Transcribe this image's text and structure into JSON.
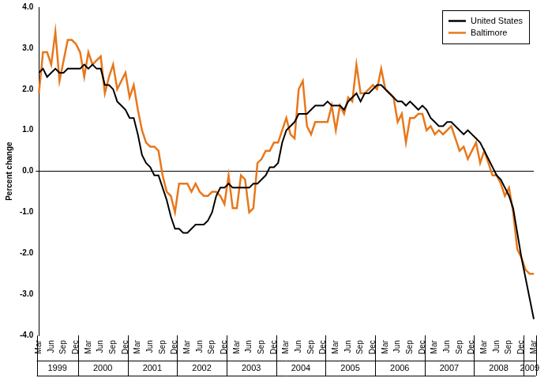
{
  "chart_data": {
    "type": "line",
    "y_label": "Percent change",
    "categories": [
      "Mar",
      null,
      null,
      "Jun",
      null,
      null,
      "Sep",
      null,
      null,
      "Dec",
      null,
      null,
      "Mar",
      null,
      null,
      "Jun",
      null,
      null,
      "Sep",
      null,
      null,
      "Dec",
      null,
      null,
      "Mar",
      null,
      null,
      "Jun",
      null,
      null,
      "Sep",
      null,
      null,
      "Dec",
      null,
      null,
      "Mar",
      null,
      null,
      "Jun",
      null,
      null,
      "Sep",
      null,
      null,
      "Dec",
      null,
      null,
      "Mar",
      null,
      null,
      "Jun",
      null,
      null,
      "Sep",
      null,
      null,
      "Dec",
      null,
      null,
      "Mar",
      null,
      null,
      "Jun",
      null,
      null,
      "Sep",
      null,
      null,
      "Dec",
      null,
      null,
      "Mar",
      null,
      null,
      "Jun",
      null,
      null,
      "Sep",
      null,
      null,
      "Dec",
      null,
      null,
      "Mar",
      null,
      null,
      "Jun",
      null,
      null,
      "Sep",
      null,
      null,
      "Dec",
      null,
      null,
      "Mar",
      null,
      null,
      "Jun",
      null,
      null,
      "Sep",
      null,
      null,
      "Dec",
      null,
      null,
      "Mar",
      null,
      null,
      "Jun",
      null,
      null,
      "Sep",
      null,
      null,
      "Dec",
      null,
      null,
      "Mar"
    ],
    "x_groups": [
      {
        "label": "1999",
        "count": 10
      },
      {
        "label": "2000",
        "count": 12
      },
      {
        "label": "2001",
        "count": 12
      },
      {
        "label": "2002",
        "count": 12
      },
      {
        "label": "2003",
        "count": 12
      },
      {
        "label": "2004",
        "count": 12
      },
      {
        "label": "2005",
        "count": 12
      },
      {
        "label": "2006",
        "count": 12
      },
      {
        "label": "2007",
        "count": 12
      },
      {
        "label": "2008",
        "count": 12
      },
      {
        "label": "2009",
        "count": 3
      }
    ],
    "series": [
      {
        "name": "United States",
        "color": "#000000",
        "values": [
          2.4,
          2.5,
          2.3,
          2.4,
          2.5,
          2.4,
          2.4,
          2.5,
          2.5,
          2.5,
          2.5,
          2.6,
          2.5,
          2.6,
          2.5,
          2.5,
          2.1,
          2.1,
          2.0,
          1.7,
          1.6,
          1.5,
          1.3,
          1.3,
          0.9,
          0.4,
          0.2,
          0.1,
          -0.1,
          -0.1,
          -0.4,
          -0.7,
          -1.1,
          -1.4,
          -1.4,
          -1.5,
          -1.5,
          -1.4,
          -1.3,
          -1.3,
          -1.3,
          -1.2,
          -1.0,
          -0.6,
          -0.4,
          -0.4,
          -0.3,
          -0.4,
          -0.4,
          -0.4,
          -0.4,
          -0.4,
          -0.3,
          -0.3,
          -0.2,
          -0.1,
          0.1,
          0.1,
          0.2,
          0.7,
          1.0,
          1.1,
          1.2,
          1.4,
          1.4,
          1.4,
          1.5,
          1.6,
          1.6,
          1.6,
          1.7,
          1.6,
          1.6,
          1.6,
          1.5,
          1.7,
          1.8,
          1.9,
          1.7,
          1.9,
          1.9,
          2.0,
          2.1,
          2.1,
          2.0,
          1.9,
          1.8,
          1.7,
          1.7,
          1.6,
          1.7,
          1.6,
          1.5,
          1.6,
          1.5,
          1.3,
          1.2,
          1.1,
          1.1,
          1.2,
          1.2,
          1.1,
          1.0,
          0.9,
          1.0,
          0.9,
          0.8,
          0.7,
          0.5,
          0.3,
          0.1,
          -0.1,
          -0.2,
          -0.4,
          -0.6,
          -0.9,
          -1.5,
          -2.1,
          -2.6,
          -3.1,
          -3.6
        ]
      },
      {
        "name": "Baltimore",
        "color": "#e8771a",
        "values": [
          1.9,
          2.9,
          2.9,
          2.6,
          3.4,
          2.2,
          2.7,
          3.2,
          3.2,
          3.1,
          2.9,
          2.3,
          2.9,
          2.6,
          2.7,
          2.8,
          1.9,
          2.3,
          2.6,
          2.0,
          2.2,
          2.4,
          1.8,
          2.1,
          1.5,
          1.0,
          0.7,
          0.6,
          0.6,
          0.5,
          -0.1,
          -0.5,
          -0.6,
          -1.0,
          -0.3,
          -0.3,
          -0.3,
          -0.5,
          -0.3,
          -0.5,
          -0.6,
          -0.6,
          -0.5,
          -0.5,
          -0.6,
          -0.8,
          -0.1,
          -0.9,
          -0.9,
          -0.1,
          -0.2,
          -1.0,
          -0.9,
          0.2,
          0.3,
          0.5,
          0.5,
          0.7,
          0.7,
          1.0,
          1.3,
          0.9,
          0.8,
          2.0,
          2.2,
          1.1,
          0.9,
          1.2,
          1.2,
          1.2,
          1.2,
          1.6,
          1.0,
          1.6,
          1.4,
          1.8,
          1.7,
          2.6,
          1.9,
          1.9,
          2.0,
          2.1,
          2.0,
          2.5,
          2.0,
          1.9,
          1.8,
          1.2,
          1.4,
          0.7,
          1.3,
          1.3,
          1.4,
          1.4,
          1.0,
          1.1,
          0.9,
          1.0,
          0.9,
          1.0,
          1.1,
          0.8,
          0.5,
          0.6,
          0.3,
          0.5,
          0.7,
          0.2,
          0.5,
          0.2,
          -0.1,
          -0.1,
          -0.3,
          -0.6,
          -0.4,
          -1.0,
          -1.9,
          -2.1,
          -2.4,
          -2.5,
          -2.5
        ]
      }
    ],
    "ylim": [
      -4,
      4
    ],
    "yticks": [
      {
        "value": -4,
        "label": "-4.0"
      },
      {
        "value": -3,
        "label": "-3.0"
      },
      {
        "value": -2,
        "label": "-2.0"
      },
      {
        "value": -1,
        "label": "-1.0"
      },
      {
        "value": 0,
        "label": "0.0"
      },
      {
        "value": 1,
        "label": "1.0"
      },
      {
        "value": 2,
        "label": "2.0"
      },
      {
        "value": 3,
        "label": "3.0"
      },
      {
        "value": 4,
        "label": "4.0"
      }
    ],
    "grid": false,
    "legend": "top-right"
  }
}
